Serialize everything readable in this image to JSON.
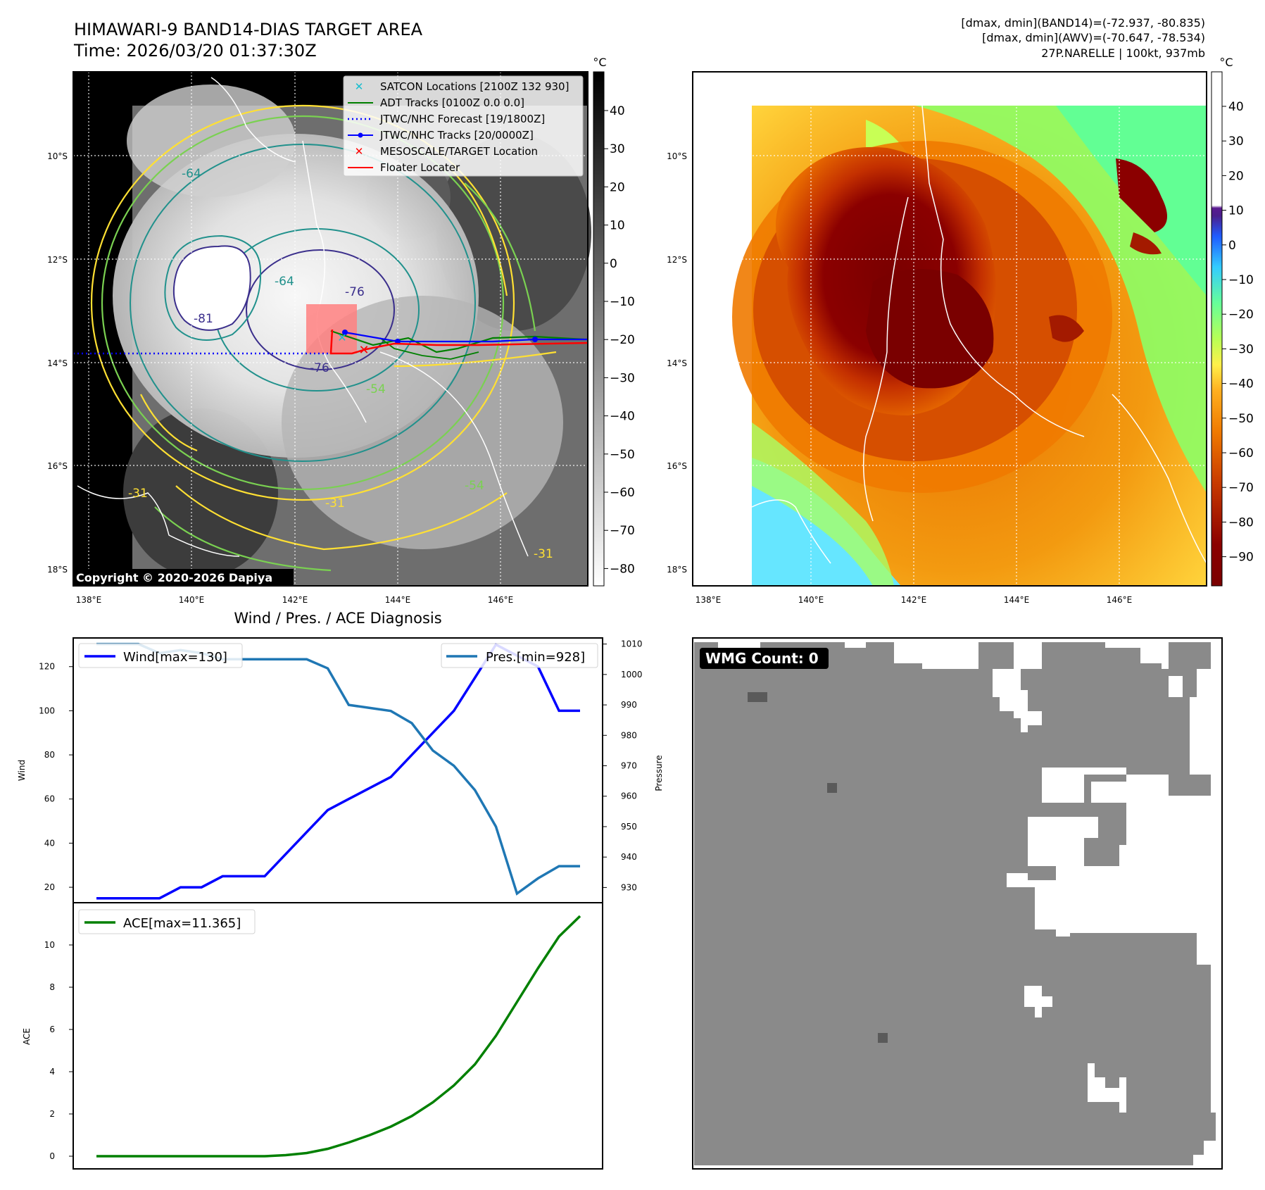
{
  "header": {
    "title": "HIMAWARI-9 BAND14-DIAS TARGET AREA",
    "time": "Time: 2026/03/20 01:37:30Z",
    "stat1": "[dmax, dmin](BAND14)=(-72.937, -80.835)",
    "stat2": "[dmax, dmin](AWV)=(-70.647, -78.534)",
    "storm": "27P.NARELLE | 100kt, 937mb"
  },
  "map": {
    "unit_label": "°C",
    "lat_labels": [
      "10°S",
      "12°S",
      "14°S",
      "16°S",
      "18°S"
    ],
    "lon_labels": [
      "138°E",
      "140°E",
      "142°E",
      "144°E",
      "146°E"
    ],
    "contour_labels": [
      "-64",
      "-64",
      "-81",
      "-76",
      "-76",
      "-54",
      "-31",
      "-31",
      "-31",
      "-54"
    ],
    "copyright": "Copyright © 2020-2026 Dapiya",
    "left_colorbar_ticks": [
      "40",
      "30",
      "20",
      "10",
      "0",
      "−10",
      "−20",
      "−30",
      "−40",
      "−50",
      "−60",
      "−70",
      "−80"
    ],
    "right_colorbar_ticks": [
      "40",
      "30",
      "20",
      "10",
      "0",
      "−10",
      "−20",
      "−30",
      "−40",
      "−50",
      "−60",
      "−70",
      "−80",
      "−90"
    ],
    "legend": [
      {
        "label": "SATCON Locations [2100Z 132 930]",
        "color": "#17becf",
        "marker": "x"
      },
      {
        "label": "ADT Tracks [0100Z 0.0 0.0]",
        "color": "#008000",
        "marker": "line"
      },
      {
        "label": "JTWC/NHC Forecast [19/1800Z]",
        "color": "#0000ff",
        "marker": "dotted"
      },
      {
        "label": "JTWC/NHC Tracks [20/0000Z]",
        "color": "#0000ff",
        "marker": "line-dot"
      },
      {
        "label": "MESOSCALE/TARGET Location",
        "color": "#ff0000",
        "marker": "x"
      },
      {
        "label": "Floater Locater",
        "color": "#ff0000",
        "marker": "line"
      }
    ],
    "colors": {
      "background": "#000000",
      "contour_yellow": "#ffe033",
      "contour_green": "#7ad151",
      "contour_teal": "#21918c",
      "contour_navy": "#3b2f8c"
    }
  },
  "diagnosis": {
    "title": "Wind / Pres. / ACE Diagnosis",
    "wmg_label": "WMG Count: 0"
  },
  "chart_data": [
    {
      "type": "line",
      "title": "Wind / Pres. / ACE Diagnosis",
      "x_index": [
        0,
        1,
        2,
        3,
        4,
        5,
        6,
        7,
        8,
        9,
        10,
        11,
        12,
        13,
        14,
        15,
        16,
        17,
        18,
        19,
        20,
        21,
        22,
        23
      ],
      "series": [
        {
          "name": "Wind[max=130]",
          "axis": "left",
          "color": "#0000ff",
          "values": [
            15,
            15,
            15,
            15,
            20,
            20,
            25,
            25,
            25,
            35,
            45,
            55,
            60,
            65,
            70,
            80,
            90,
            100,
            115,
            130,
            125,
            120,
            100,
            100
          ]
        },
        {
          "name": "Pres.[min=928]",
          "axis": "right",
          "color": "#1f77b4",
          "values": [
            1010,
            1010,
            1010,
            1007,
            1008,
            1007,
            1005,
            1005,
            1005,
            1005,
            1005,
            1002,
            990,
            989,
            988,
            984,
            975,
            970,
            962,
            950,
            928,
            933,
            937,
            937
          ]
        }
      ],
      "wind_x": [
        0,
        1,
        2,
        3,
        4,
        5,
        6,
        7,
        8,
        9,
        10,
        11,
        12,
        13,
        14,
        15,
        16,
        17,
        18,
        19,
        20,
        21,
        22,
        23
      ],
      "pres_x": [
        0,
        1,
        2,
        3,
        4,
        5,
        6,
        7,
        8,
        9,
        10,
        11,
        12,
        13,
        14,
        15,
        16,
        17,
        18,
        19,
        20,
        21,
        22,
        23
      ],
      "ylabel": "Wind",
      "y2label": "Pressure",
      "ylim": [
        13,
        133
      ],
      "y2lim": [
        925,
        1012
      ],
      "yticks": [
        20,
        40,
        60,
        80,
        100,
        120
      ],
      "y2ticks": [
        930,
        940,
        950,
        960,
        970,
        980,
        990,
        1000,
        1010
      ],
      "legend_left": "top-left",
      "legend_right": "top-right"
    },
    {
      "type": "line",
      "series": [
        {
          "name": "ACE[max=11.365]",
          "color": "#008000",
          "values": [
            0,
            0,
            0,
            0,
            0,
            0,
            0,
            0,
            0,
            0.05,
            0.15,
            0.35,
            0.65,
            1.0,
            1.4,
            1.9,
            2.55,
            3.35,
            4.35,
            5.7,
            7.3,
            8.9,
            10.4,
            11.365
          ]
        }
      ],
      "ylabel": "ACE",
      "ylim": [
        -0.6,
        12.0
      ],
      "yticks": [
        0,
        2,
        4,
        6,
        8,
        10
      ],
      "legend": "top-left"
    }
  ]
}
